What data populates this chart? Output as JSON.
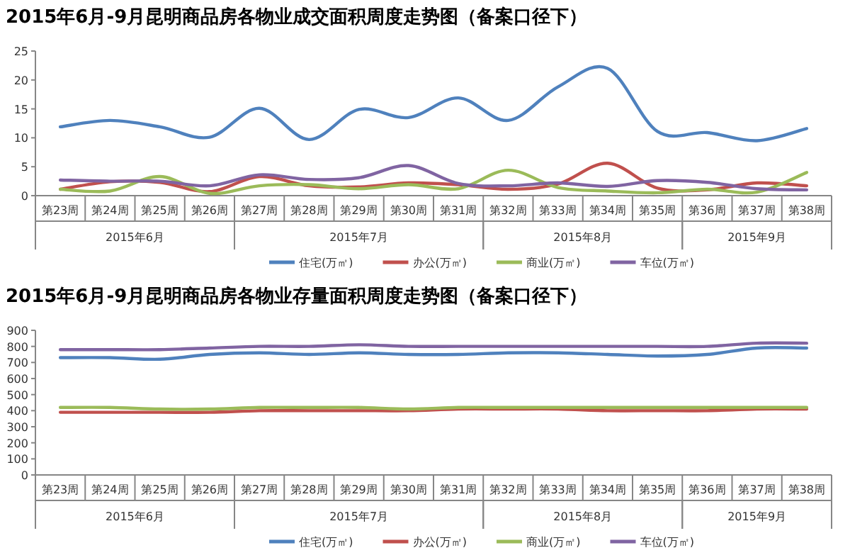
{
  "chart_data": [
    {
      "type": "line",
      "title": "2015年6月-9月昆明商品房各物业成交面积周度走势图（备案口径下）",
      "categories": [
        "第23周",
        "第24周",
        "第25周",
        "第26周",
        "第27周",
        "第28周",
        "第29周",
        "第30周",
        "第31周",
        "第32周",
        "第33周",
        "第34周",
        "第35周",
        "第36周",
        "第37周",
        "第38周"
      ],
      "annotations": [
        "2015年6月",
        "2015年7月",
        "2015年8月",
        "2015年9月"
      ],
      "series": [
        {
          "name": "住宅(万㎡)",
          "color": "#4f81bd",
          "values": [
            11.9,
            13,
            11.9,
            10.1,
            15.1,
            9.7,
            14.9,
            13.5,
            16.9,
            13,
            18.8,
            22,
            11.1,
            10.9,
            9.5,
            11.6
          ]
        },
        {
          "name": "办公(万㎡)",
          "color": "#c0504d",
          "values": [
            1.1,
            2.4,
            2.3,
            0.7,
            3.3,
            1.7,
            1.5,
            2.2,
            1.9,
            1.1,
            2,
            5.6,
            1.3,
            1,
            2.2,
            1.7
          ]
        },
        {
          "name": "商业(万㎡)",
          "color": "#9bbb59",
          "values": [
            1.1,
            0.8,
            3.3,
            0.4,
            1.7,
            1.9,
            1.2,
            1.9,
            1.2,
            4.4,
            1.4,
            0.8,
            0.5,
            1.1,
            0.6,
            4
          ]
        },
        {
          "name": "车位(万㎡)",
          "color": "#8064a2",
          "values": [
            2.7,
            2.5,
            2.5,
            1.7,
            3.6,
            2.8,
            3.1,
            5.2,
            2.1,
            1.7,
            2.2,
            1.6,
            2.6,
            2.3,
            1.2,
            1
          ]
        }
      ],
      "ylim": [
        0,
        25
      ],
      "yticks": [
        0,
        5,
        10,
        15,
        20,
        25
      ],
      "legend": "bottom",
      "marker": "none"
    },
    {
      "type": "line",
      "title": "2015年6月-9月昆明商品房各物业存量面积周度走势图（备案口径下）",
      "categories": [
        "第23周",
        "第24周",
        "第25周",
        "第26周",
        "第27周",
        "第28周",
        "第29周",
        "第30周",
        "第31周",
        "第32周",
        "第33周",
        "第34周",
        "第35周",
        "第36周",
        "第37周",
        "第38周"
      ],
      "annotations": [
        "2015年6月",
        "2015年7月",
        "2015年8月",
        "2015年9月"
      ],
      "series": [
        {
          "name": "住宅(万㎡)",
          "color": "#4f81bd",
          "values": [
            730,
            730,
            720,
            750,
            760,
            750,
            760,
            750,
            750,
            760,
            760,
            750,
            740,
            750,
            790,
            790
          ]
        },
        {
          "name": "办公(万㎡)",
          "color": "#c0504d",
          "values": [
            390,
            390,
            390,
            390,
            400,
            400,
            400,
            400,
            410,
            410,
            410,
            400,
            400,
            400,
            410,
            410
          ]
        },
        {
          "name": "商业(万㎡)",
          "color": "#9bbb59",
          "values": [
            420,
            420,
            410,
            410,
            420,
            420,
            420,
            410,
            420,
            420,
            420,
            420,
            420,
            420,
            420,
            420
          ]
        },
        {
          "name": "车位(万㎡)",
          "color": "#8064a2",
          "values": [
            780,
            780,
            780,
            790,
            800,
            800,
            810,
            800,
            800,
            800,
            800,
            800,
            800,
            800,
            820,
            820
          ]
        }
      ],
      "ylim": [
        0,
        900
      ],
      "yticks": [
        0,
        100,
        200,
        300,
        400,
        500,
        600,
        700,
        800,
        900
      ],
      "legend": "bottom",
      "marker": "none"
    }
  ]
}
